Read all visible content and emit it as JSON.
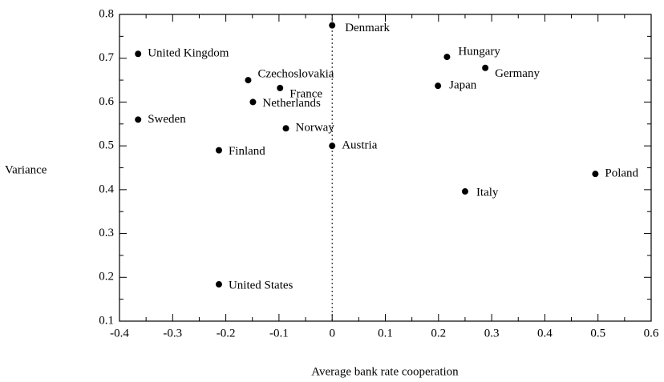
{
  "chart_data": {
    "type": "scatter",
    "xlabel": "Average bank rate cooperation",
    "ylabel": "Variance",
    "points": [
      {
        "name": "Denmark",
        "x": 0,
        "y": 0.775
      },
      {
        "name": "United Kingdom",
        "x": -0.365,
        "y": 0.71
      },
      {
        "name": "Czechoslovakia",
        "x": -0.158,
        "y": 0.65
      },
      {
        "name": "France",
        "x": -0.098,
        "y": 0.632
      },
      {
        "name": "Netherlands",
        "x": -0.149,
        "y": 0.6
      },
      {
        "name": "Sweden",
        "x": -0.365,
        "y": 0.56
      },
      {
        "name": "Norway",
        "x": -0.087,
        "y": 0.54
      },
      {
        "name": "Finland",
        "x": -0.213,
        "y": 0.49
      },
      {
        "name": "Austria",
        "x": 0,
        "y": 0.5
      },
      {
        "name": "Hungary",
        "x": 0.216,
        "y": 0.703
      },
      {
        "name": "Germany",
        "x": 0.288,
        "y": 0.678
      },
      {
        "name": "Japan",
        "x": 0.199,
        "y": 0.637
      },
      {
        "name": "Poland",
        "x": 0.495,
        "y": 0.436
      },
      {
        "name": "Italy",
        "x": 0.25,
        "y": 0.396
      },
      {
        "name": "United States",
        "x": -0.213,
        "y": 0.184
      }
    ],
    "color": "#000000",
    "reference_x": 0,
    "xlim": [
      -0.4,
      0.6
    ],
    "xticks": [
      -0.4,
      -0.3,
      -0.2,
      -0.1,
      0,
      0.1,
      0.2,
      0.3,
      0.4,
      0.5,
      0.6
    ],
    "ylim": [
      0.1,
      0.8
    ],
    "yticks": [
      0.1,
      0.2,
      0.3,
      0.4,
      0.5,
      0.6,
      0.7,
      0.8
    ]
  }
}
